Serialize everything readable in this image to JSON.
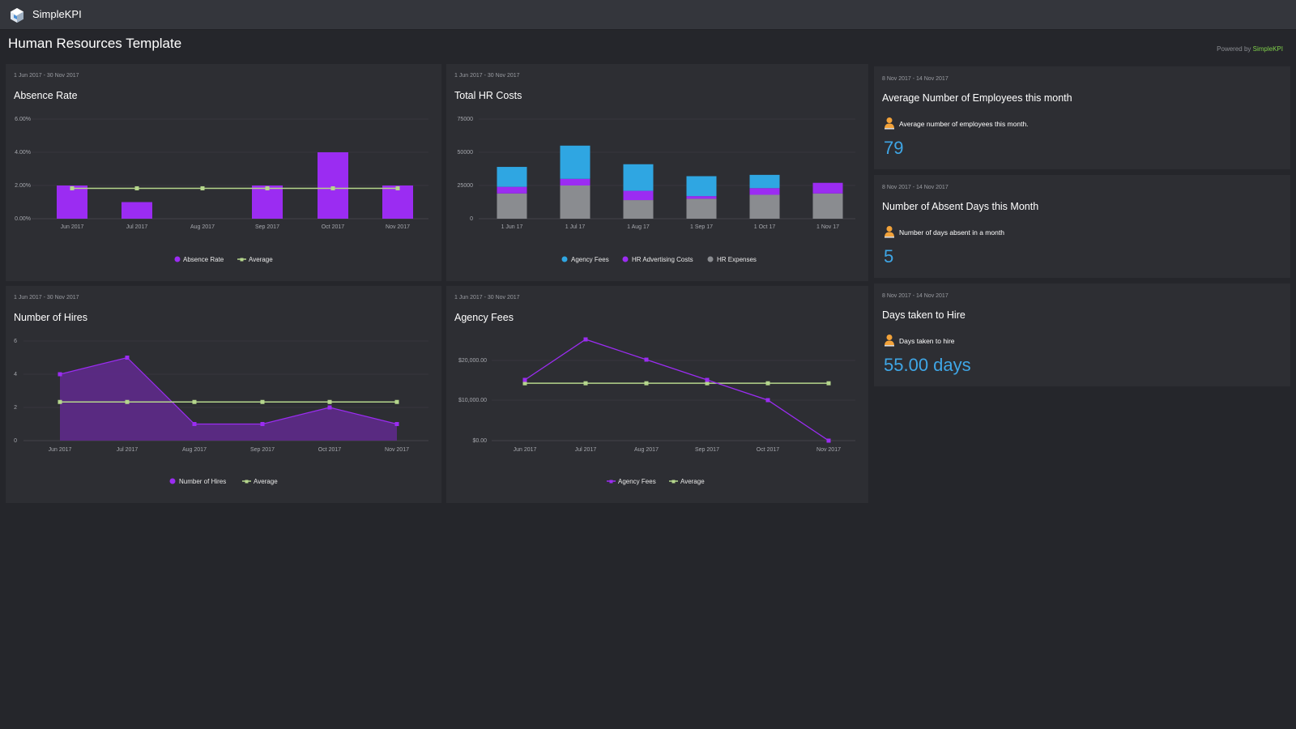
{
  "header": {
    "app_name": "SimpleKPI",
    "page_title": "Human Resources Template",
    "powered_prefix": "Powered by ",
    "powered_brand": "SimpleKPI"
  },
  "colors": {
    "purple": "#9b2cf2",
    "green_line": "#b5d68c",
    "blue": "#2fa6e2",
    "grey": "#8a8c90",
    "value_blue": "#3fa6e6"
  },
  "panels": {
    "absence": {
      "range": "1 Jun 2017 - 30 Nov 2017",
      "title": "Absence Rate"
    },
    "hrcosts": {
      "range": "1 Jun 2017 - 30 Nov 2017",
      "title": "Total HR Costs"
    },
    "hires": {
      "range": "1 Jun 2017 - 30 Nov 2017",
      "title": "Number of Hires"
    },
    "agency": {
      "range": "1 Jun 2017 - 30 Nov 2017",
      "title": "Agency Fees"
    }
  },
  "kpis": [
    {
      "range": "8 Nov 2017 - 14 Nov 2017",
      "title": "Average Number of Employees this month",
      "desc": "Average number of employees this month.",
      "value": "79",
      "icon": "person-icon"
    },
    {
      "range": "8 Nov 2017 - 14 Nov 2017",
      "title": "Number of Absent Days this Month",
      "desc": "Number of days absent in a month",
      "value": "5",
      "icon": "person-icon"
    },
    {
      "range": "8 Nov 2017 - 14 Nov 2017",
      "title": "Days taken to Hire",
      "desc": "Days taken to hire",
      "value": "55.00 days",
      "icon": "person-icon"
    }
  ],
  "chart_data": [
    {
      "id": "absence",
      "type": "bar+line",
      "title": "Absence Rate",
      "categories": [
        "Jun 2017",
        "Jul 2017",
        "Aug 2017",
        "Sep 2017",
        "Oct 2017",
        "Nov 2017"
      ],
      "series": [
        {
          "name": "Absence Rate",
          "type": "bar",
          "values": [
            2,
            1,
            0,
            2,
            4,
            2
          ]
        },
        {
          "name": "Average",
          "type": "line",
          "values": [
            1.83,
            1.83,
            1.83,
            1.83,
            1.83,
            1.83
          ]
        }
      ],
      "yticks": [
        "0.00%",
        "2.00%",
        "4.00%",
        "6.00%"
      ],
      "ylim": [
        0,
        6
      ],
      "legend": "bottom-center"
    },
    {
      "id": "hrcosts",
      "type": "stacked-bar",
      "title": "Total HR Costs",
      "categories": [
        "1 Jun 17",
        "1 Jul 17",
        "1 Aug 17",
        "1 Sep 17",
        "1 Oct 17",
        "1 Nov 17"
      ],
      "series": [
        {
          "name": "HR Expenses",
          "values": [
            19000,
            25000,
            14000,
            15000,
            18000,
            19000
          ]
        },
        {
          "name": "HR Advertising Costs",
          "values": [
            5000,
            5000,
            7000,
            2000,
            5000,
            8000
          ]
        },
        {
          "name": "Agency Fees",
          "values": [
            15000,
            25000,
            20000,
            15000,
            10000,
            0
          ]
        }
      ],
      "legend_order": [
        "Agency Fees",
        "HR Advertising Costs",
        "HR Expenses"
      ],
      "yticks": [
        "0",
        "25000",
        "50000",
        "75000"
      ],
      "ylim": [
        0,
        75000
      ],
      "legend": "bottom-center"
    },
    {
      "id": "hires",
      "type": "area+line",
      "title": "Number of Hires",
      "categories": [
        "Jun 2017",
        "Jul 2017",
        "Aug 2017",
        "Sep 2017",
        "Oct 2017",
        "Nov 2017"
      ],
      "series": [
        {
          "name": "Number of Hires",
          "type": "area",
          "values": [
            4,
            5,
            1,
            1,
            2,
            1
          ]
        },
        {
          "name": "Average",
          "type": "line",
          "values": [
            2.33,
            2.33,
            2.33,
            2.33,
            2.33,
            2.33
          ]
        }
      ],
      "yticks": [
        "0",
        "2",
        "4",
        "6"
      ],
      "ylim": [
        0,
        6
      ],
      "legend": "bottom-center"
    },
    {
      "id": "agency",
      "type": "line",
      "title": "Agency Fees",
      "categories": [
        "Jun 2017",
        "Jul 2017",
        "Aug 2017",
        "Sep 2017",
        "Oct 2017",
        "Nov 2017"
      ],
      "series": [
        {
          "name": "Agency Fees",
          "type": "line",
          "values": [
            15000,
            25000,
            20000,
            15000,
            10000,
            0
          ]
        },
        {
          "name": "Average",
          "type": "line",
          "values": [
            14166.67,
            14166.67,
            14166.67,
            14166.67,
            14166.67,
            14166.67
          ]
        }
      ],
      "yticks": [
        "$0.00",
        "$10,000.00",
        "$20,000.00"
      ],
      "ylim": [
        0,
        25000
      ],
      "legend": "bottom-center"
    }
  ]
}
